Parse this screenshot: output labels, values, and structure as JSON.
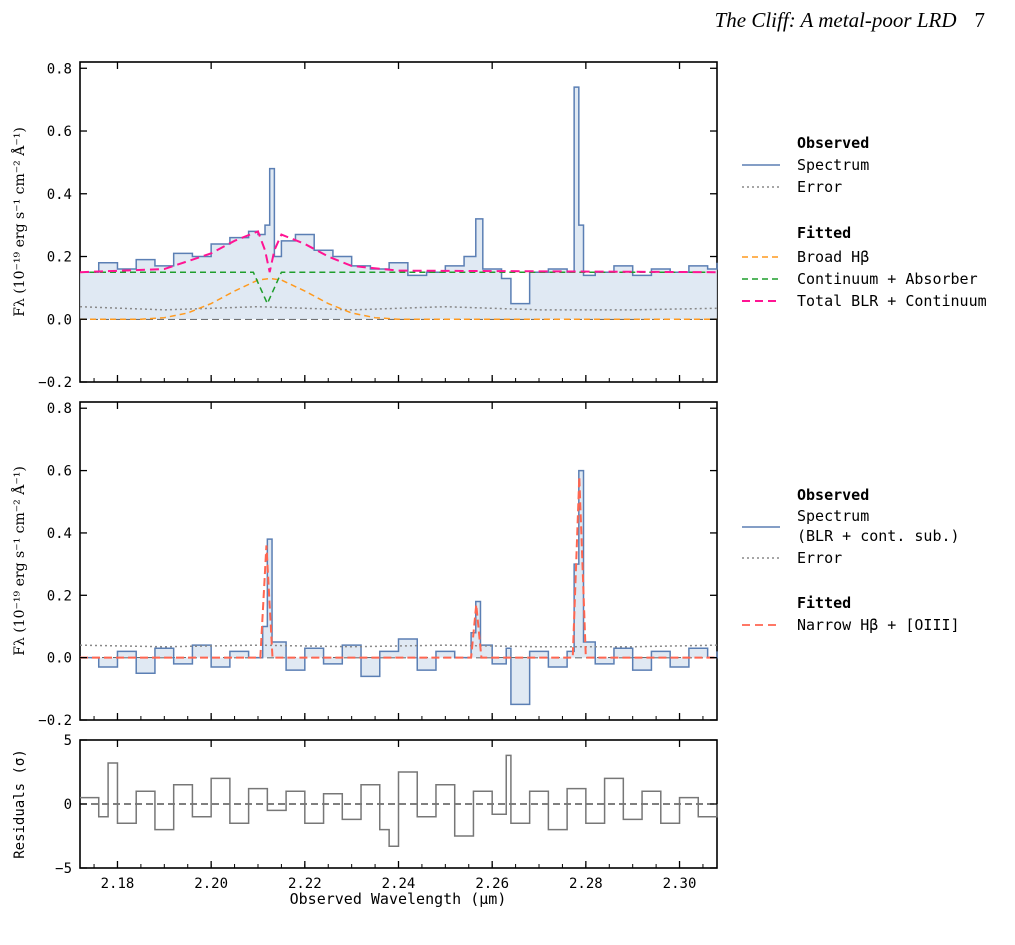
{
  "header": {
    "running_title": "The Cliff: A metal-poor LRD",
    "page_number": "7"
  },
  "panel1": {
    "ylabel": "Fλ (10⁻¹⁹ erg s⁻¹ cm⁻² Å⁻¹)",
    "legend_observed_title": "Observed",
    "legend_spectrum": "Spectrum",
    "legend_error": "Error",
    "legend_fitted_title": "Fitted",
    "legend_broad": "Broad Hβ",
    "legend_cont": "Continuum + Absorber",
    "legend_total": "Total BLR + Continuum"
  },
  "panel2": {
    "ylabel": "Fλ (10⁻¹⁹ erg s⁻¹ cm⁻² Å⁻¹)",
    "legend_observed_title": "Observed",
    "legend_spectrum": "Spectrum",
    "legend_spectrum_note": "(BLR + cont. sub.)",
    "legend_error": "Error",
    "legend_fitted_title": "Fitted",
    "legend_narrow": "Narrow Hβ + [OIII]"
  },
  "panel3": {
    "ylabel": "Residuals (σ)"
  },
  "xlabel": "Observed Wavelength (μm)",
  "colors": {
    "spectrum": "#5b7fb4",
    "fill": "#dbe5f1",
    "error": "#888888",
    "broad": "#ff9a1f",
    "continuum": "#1f9e2c",
    "total": "#ff1493",
    "narrow": "#ff6650",
    "residual": "#777777"
  },
  "chart_data": [
    {
      "type": "line",
      "panel": "top",
      "ylabel": "Fλ (10⁻¹⁹ erg s⁻¹ cm⁻² Å⁻¹)",
      "xlim": [
        2.172,
        2.308
      ],
      "ylim": [
        -0.2,
        0.82
      ],
      "x_ticks": [
        2.18,
        2.2,
        2.22,
        2.24,
        2.26,
        2.28,
        2.3
      ],
      "y_ticks": [
        -0.2,
        0.0,
        0.2,
        0.4,
        0.6,
        0.8
      ],
      "series": [
        {
          "name": "Spectrum",
          "style": "step",
          "x": [
            2.172,
            2.176,
            2.18,
            2.184,
            2.188,
            2.192,
            2.196,
            2.2,
            2.204,
            2.208,
            2.21,
            2.2115,
            2.2125,
            2.2135,
            2.215,
            2.218,
            2.222,
            2.226,
            2.23,
            2.234,
            2.238,
            2.242,
            2.246,
            2.25,
            2.254,
            2.2565,
            2.258,
            2.262,
            2.264,
            2.268,
            2.272,
            2.276,
            2.2775,
            2.2785,
            2.2795,
            2.282,
            2.286,
            2.29,
            2.294,
            2.298,
            2.302,
            2.306,
            2.308
          ],
          "y": [
            0.15,
            0.18,
            0.16,
            0.19,
            0.17,
            0.21,
            0.2,
            0.24,
            0.26,
            0.28,
            0.27,
            0.3,
            0.48,
            0.2,
            0.25,
            0.27,
            0.22,
            0.2,
            0.17,
            0.16,
            0.18,
            0.14,
            0.15,
            0.17,
            0.2,
            0.32,
            0.16,
            0.13,
            0.05,
            0.15,
            0.16,
            0.15,
            0.74,
            0.3,
            0.14,
            0.15,
            0.17,
            0.14,
            0.16,
            0.15,
            0.17,
            0.16,
            0.18
          ]
        },
        {
          "name": "Error",
          "style": "dotted",
          "x": [
            2.172,
            2.19,
            2.21,
            2.23,
            2.25,
            2.27,
            2.29,
            2.308
          ],
          "y": [
            0.04,
            0.03,
            0.04,
            0.03,
            0.04,
            0.03,
            0.03,
            0.035
          ]
        },
        {
          "name": "Broad Hβ",
          "style": "dashed",
          "x": [
            2.172,
            2.185,
            2.19,
            2.195,
            2.2,
            2.205,
            2.21,
            2.2125,
            2.215,
            2.22,
            2.225,
            2.23,
            2.235,
            2.24,
            2.308
          ],
          "y": [
            0.0,
            0.0,
            0.005,
            0.02,
            0.05,
            0.09,
            0.125,
            0.13,
            0.125,
            0.09,
            0.05,
            0.02,
            0.005,
            0.0,
            0.0
          ]
        },
        {
          "name": "Continuum + Absorber",
          "style": "dashed",
          "x": [
            2.172,
            2.209,
            2.2105,
            2.212,
            2.2135,
            2.215,
            2.308
          ],
          "y": [
            0.15,
            0.15,
            0.1,
            0.05,
            0.1,
            0.15,
            0.15
          ]
        },
        {
          "name": "Total BLR + Continuum",
          "style": "dashed",
          "x": [
            2.172,
            2.19,
            2.2,
            2.205,
            2.21,
            2.2115,
            2.2125,
            2.2135,
            2.215,
            2.22,
            2.225,
            2.23,
            2.24,
            2.308
          ],
          "y": [
            0.15,
            0.16,
            0.21,
            0.25,
            0.28,
            0.22,
            0.15,
            0.22,
            0.27,
            0.24,
            0.2,
            0.17,
            0.155,
            0.15
          ]
        }
      ]
    },
    {
      "type": "line",
      "panel": "middle",
      "ylabel": "Fλ (10⁻¹⁹ erg s⁻¹ cm⁻² Å⁻¹)",
      "xlim": [
        2.172,
        2.308
      ],
      "ylim": [
        -0.2,
        0.82
      ],
      "x_ticks": [
        2.18,
        2.2,
        2.22,
        2.24,
        2.26,
        2.28,
        2.3
      ],
      "y_ticks": [
        -0.2,
        0.0,
        0.2,
        0.4,
        0.6,
        0.8
      ],
      "series": [
        {
          "name": "Spectrum (BLR + cont. sub.)",
          "style": "step",
          "x": [
            2.172,
            2.176,
            2.18,
            2.184,
            2.188,
            2.192,
            2.196,
            2.2,
            2.204,
            2.208,
            2.211,
            2.212,
            2.213,
            2.216,
            2.22,
            2.224,
            2.228,
            2.232,
            2.236,
            2.24,
            2.244,
            2.248,
            2.252,
            2.2555,
            2.2565,
            2.2575,
            2.26,
            2.263,
            2.264,
            2.268,
            2.272,
            2.276,
            2.2775,
            2.2785,
            2.2795,
            2.282,
            2.286,
            2.29,
            2.294,
            2.298,
            2.302,
            2.306,
            2.308
          ],
          "y": [
            0.0,
            -0.03,
            0.02,
            -0.05,
            0.03,
            -0.02,
            0.04,
            -0.03,
            0.02,
            0.0,
            0.1,
            0.38,
            0.05,
            -0.04,
            0.03,
            -0.02,
            0.04,
            -0.06,
            0.02,
            0.06,
            -0.04,
            0.02,
            0.0,
            0.08,
            0.18,
            0.04,
            -0.02,
            0.03,
            -0.15,
            0.02,
            -0.03,
            0.02,
            0.3,
            0.6,
            0.05,
            -0.02,
            0.03,
            -0.04,
            0.02,
            -0.03,
            0.03,
            0.0,
            0.02
          ]
        },
        {
          "name": "Error",
          "style": "dotted",
          "x": [
            2.172,
            2.19,
            2.21,
            2.23,
            2.25,
            2.27,
            2.29,
            2.308
          ],
          "y": [
            0.04,
            0.035,
            0.04,
            0.035,
            0.04,
            0.035,
            0.035,
            0.04
          ]
        },
        {
          "name": "Narrow Hβ + [OIII]",
          "style": "dashed",
          "x": [
            2.172,
            2.2105,
            2.2118,
            2.2131,
            2.2555,
            2.2566,
            2.2577,
            2.2772,
            2.2786,
            2.28,
            2.308
          ],
          "y": [
            0.0,
            0.0,
            0.36,
            0.0,
            0.0,
            0.17,
            0.0,
            0.0,
            0.58,
            0.0,
            0.0
          ]
        }
      ]
    },
    {
      "type": "line",
      "panel": "bottom",
      "ylabel": "Residuals (σ)",
      "xlabel": "Observed Wavelength (μm)",
      "xlim": [
        2.172,
        2.308
      ],
      "ylim": [
        -5,
        5
      ],
      "x_ticks": [
        2.18,
        2.2,
        2.22,
        2.24,
        2.26,
        2.28,
        2.3
      ],
      "y_ticks": [
        -5,
        0,
        5
      ],
      "series": [
        {
          "name": "Residuals",
          "style": "step",
          "x": [
            2.172,
            2.176,
            2.178,
            2.18,
            2.184,
            2.188,
            2.192,
            2.196,
            2.2,
            2.204,
            2.208,
            2.212,
            2.216,
            2.22,
            2.224,
            2.228,
            2.232,
            2.236,
            2.238,
            2.24,
            2.244,
            2.248,
            2.252,
            2.256,
            2.26,
            2.263,
            2.264,
            2.268,
            2.272,
            2.276,
            2.28,
            2.284,
            2.288,
            2.292,
            2.296,
            2.3,
            2.304,
            2.308
          ],
          "y": [
            0.5,
            -1.0,
            3.2,
            -1.5,
            1.0,
            -2.0,
            1.5,
            -1.0,
            2.0,
            -1.5,
            1.2,
            -0.5,
            1.0,
            -1.5,
            0.8,
            -1.2,
            1.5,
            -2.0,
            -3.3,
            2.5,
            -1.0,
            1.5,
            -2.5,
            1.0,
            -0.8,
            3.8,
            -1.5,
            1.0,
            -2.0,
            1.2,
            -1.5,
            2.0,
            -1.2,
            1.0,
            -1.5,
            0.5,
            -1.0,
            0.0
          ]
        }
      ]
    }
  ]
}
